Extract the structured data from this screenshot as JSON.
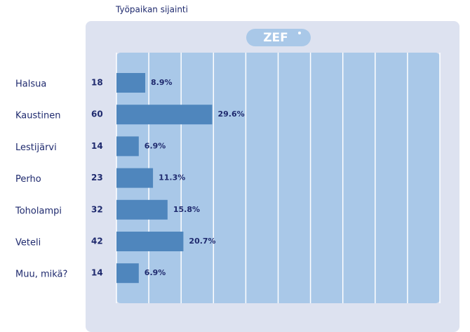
{
  "chart_data": {
    "type": "bar",
    "orientation": "horizontal",
    "title": "Työpaikan sijainti",
    "logo": "ZEF",
    "categories": [
      "Halsua",
      "Kaustinen",
      "Lestijärvi",
      "Perho",
      "Toholampi",
      "Veteli",
      "Muu, mikä?"
    ],
    "counts": [
      18,
      60,
      14,
      23,
      32,
      42,
      14
    ],
    "values": [
      8.9,
      29.6,
      6.9,
      11.3,
      15.8,
      20.7,
      6.9
    ],
    "value_labels": [
      "8.9%",
      "29.6%",
      "6.9%",
      "11.3%",
      "15.8%",
      "20.7%",
      "6.9%"
    ],
    "color": "#4f86bd",
    "xlim": [
      0,
      100
    ],
    "xticks": [
      0,
      10,
      20,
      30,
      40,
      50,
      60,
      70,
      80,
      90,
      100
    ],
    "grid": true
  }
}
